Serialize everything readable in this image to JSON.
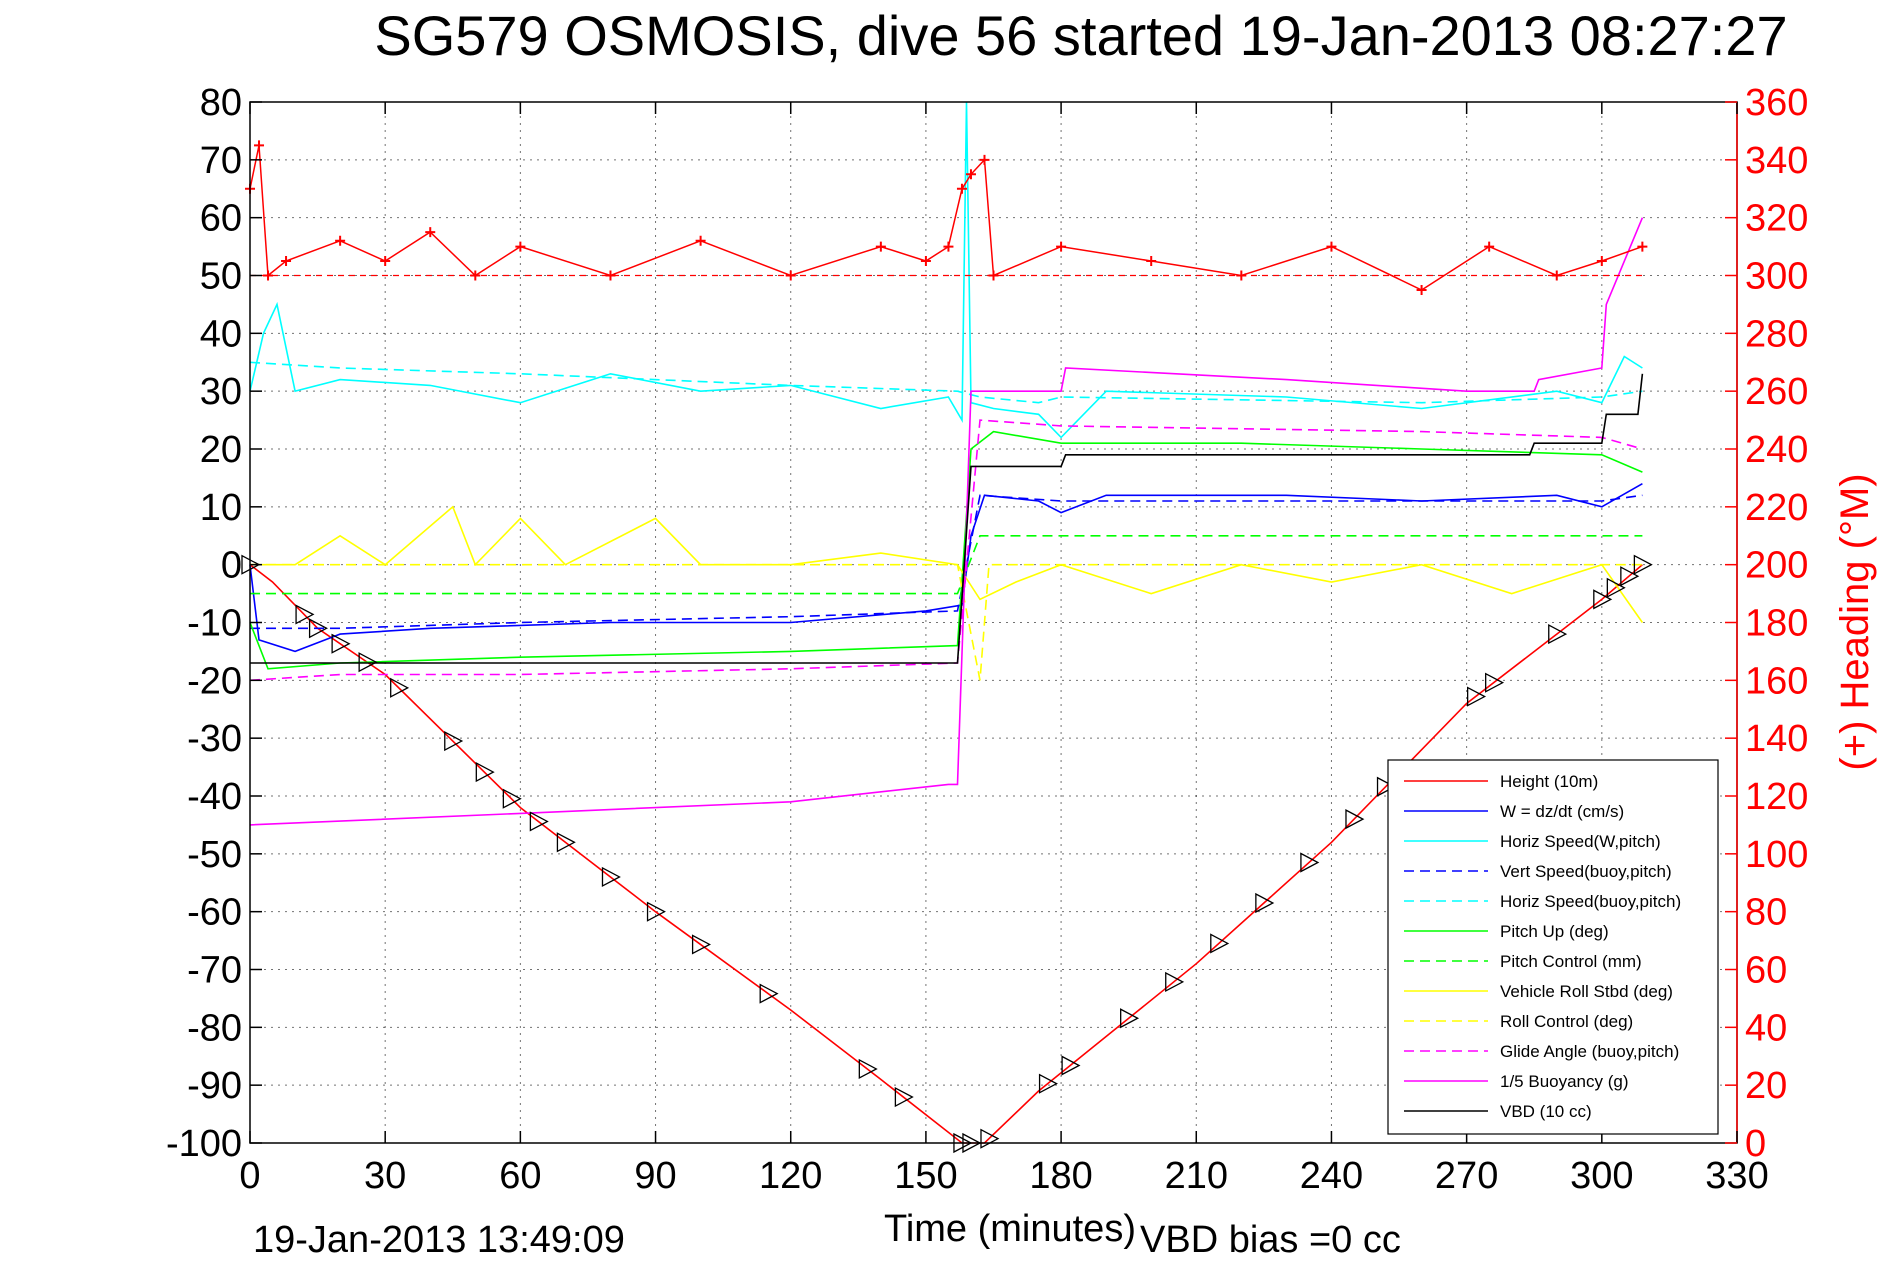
{
  "chart_data": {
    "type": "line",
    "title": "SG579 OSMOSIS, dive 56 started 19-Jan-2013 08:27:27",
    "xlabel": "Time (minutes)",
    "ylabel_right": "(+) Heading (°M)",
    "xlim": [
      0,
      330
    ],
    "ylim_left": [
      -100,
      80
    ],
    "ylim_right": [
      0,
      360
    ],
    "x_ticks": [
      "0",
      "30",
      "60",
      "90",
      "120",
      "150",
      "180",
      "210",
      "240",
      "270",
      "300",
      "330"
    ],
    "y_ticks_left": [
      "80",
      "70",
      "60",
      "50",
      "40",
      "30",
      "20",
      "10",
      "0",
      "-10",
      "-20",
      "-30",
      "-40",
      "-50",
      "-60",
      "-70",
      "-80",
      "-90",
      "-100"
    ],
    "y_ticks_right": [
      "360",
      "340",
      "320",
      "300",
      "280",
      "260",
      "240",
      "220",
      "200",
      "180",
      "160",
      "140",
      "120",
      "100",
      "80",
      "60",
      "40",
      "20",
      "0"
    ],
    "grid": true,
    "legend_position": "bottom-right",
    "footer_timestamp": "19-Jan-2013 13:49:09",
    "footer_note": "VBD bias =0 cc",
    "colors": {
      "heading": "#ff0000",
      "height": "#ff0000",
      "w": "#0000ff",
      "horiz": "#00ffff",
      "pitch": "#00ff00",
      "roll": "#ffff00",
      "buoy": "#ff00ff",
      "vbd": "#000000"
    },
    "series": [
      {
        "name": "Height (10m)",
        "color": "#ff0000",
        "style": "solid",
        "points": [
          [
            0,
            0
          ],
          [
            5,
            -3
          ],
          [
            15,
            -11
          ],
          [
            30,
            -19
          ],
          [
            60,
            -42
          ],
          [
            90,
            -60
          ],
          [
            120,
            -77
          ],
          [
            140,
            -89
          ],
          [
            158,
            -100
          ],
          [
            163,
            -100
          ],
          [
            175,
            -91
          ],
          [
            210,
            -69
          ],
          [
            240,
            -48
          ],
          [
            270,
            -24
          ],
          [
            290,
            -12
          ],
          [
            300,
            -6
          ],
          [
            309,
            0
          ]
        ]
      },
      {
        "name": "W = dz/dt (cm/s)",
        "color": "#0000ff",
        "style": "solid",
        "points": [
          [
            0,
            0
          ],
          [
            2,
            -13
          ],
          [
            10,
            -15
          ],
          [
            20,
            -12
          ],
          [
            40,
            -11
          ],
          [
            80,
            -10
          ],
          [
            120,
            -10
          ],
          [
            150,
            -8
          ],
          [
            158,
            -7
          ],
          [
            160,
            5
          ],
          [
            163,
            12
          ],
          [
            175,
            11
          ],
          [
            180,
            9
          ],
          [
            190,
            12
          ],
          [
            230,
            12
          ],
          [
            260,
            11
          ],
          [
            290,
            12
          ],
          [
            300,
            10
          ],
          [
            309,
            14
          ]
        ]
      },
      {
        "name": "Horiz Speed(W,pitch)",
        "color": "#00ffff",
        "style": "solid",
        "points": [
          [
            0,
            30
          ],
          [
            3,
            40
          ],
          [
            6,
            45
          ],
          [
            10,
            30
          ],
          [
            20,
            32
          ],
          [
            40,
            31
          ],
          [
            60,
            28
          ],
          [
            80,
            33
          ],
          [
            100,
            30
          ],
          [
            120,
            31
          ],
          [
            140,
            27
          ],
          [
            155,
            29
          ],
          [
            158,
            25
          ],
          [
            159,
            80
          ],
          [
            160,
            28
          ],
          [
            165,
            27
          ],
          [
            175,
            26
          ],
          [
            180,
            22
          ],
          [
            190,
            30
          ],
          [
            230,
            29
          ],
          [
            260,
            27
          ],
          [
            290,
            30
          ],
          [
            300,
            28
          ],
          [
            305,
            36
          ],
          [
            309,
            34
          ]
        ]
      },
      {
        "name": "Vert Speed(buoy,pitch)",
        "color": "#0000ff",
        "style": "dashed",
        "points": [
          [
            0,
            -11
          ],
          [
            20,
            -11
          ],
          [
            60,
            -10
          ],
          [
            120,
            -9
          ],
          [
            157,
            -8
          ],
          [
            162,
            12
          ],
          [
            180,
            11
          ],
          [
            260,
            11
          ],
          [
            300,
            11
          ],
          [
            309,
            12
          ]
        ]
      },
      {
        "name": "Horiz Speed(buoy,pitch)",
        "color": "#00ffff",
        "style": "dashed",
        "points": [
          [
            0,
            35
          ],
          [
            20,
            34
          ],
          [
            60,
            33
          ],
          [
            120,
            31
          ],
          [
            157,
            30
          ],
          [
            162,
            29
          ],
          [
            175,
            28
          ],
          [
            180,
            29
          ],
          [
            260,
            28
          ],
          [
            300,
            29
          ],
          [
            309,
            30
          ]
        ]
      },
      {
        "name": "Pitch Up (deg)",
        "color": "#00ff00",
        "style": "solid",
        "points": [
          [
            0,
            -10
          ],
          [
            4,
            -18
          ],
          [
            20,
            -17
          ],
          [
            60,
            -16
          ],
          [
            120,
            -15
          ],
          [
            157,
            -14
          ],
          [
            160,
            20
          ],
          [
            165,
            23
          ],
          [
            180,
            21
          ],
          [
            220,
            21
          ],
          [
            260,
            20
          ],
          [
            300,
            19
          ],
          [
            309,
            16
          ]
        ]
      },
      {
        "name": "Pitch Control (mm)",
        "color": "#00ff00",
        "style": "dashed",
        "points": [
          [
            0,
            -5
          ],
          [
            157,
            -5
          ],
          [
            162,
            5
          ],
          [
            309,
            5
          ]
        ]
      },
      {
        "name": "Vehicle Roll Stbd (deg)",
        "color": "#ffff00",
        "style": "solid",
        "points": [
          [
            0,
            0
          ],
          [
            10,
            0
          ],
          [
            20,
            5
          ],
          [
            30,
            0
          ],
          [
            45,
            10
          ],
          [
            50,
            0
          ],
          [
            60,
            8
          ],
          [
            70,
            0
          ],
          [
            90,
            8
          ],
          [
            100,
            0
          ],
          [
            120,
            0
          ],
          [
            140,
            2
          ],
          [
            157,
            0
          ],
          [
            162,
            -6
          ],
          [
            170,
            -3
          ],
          [
            180,
            0
          ],
          [
            200,
            -5
          ],
          [
            220,
            0
          ],
          [
            240,
            -3
          ],
          [
            260,
            0
          ],
          [
            280,
            -5
          ],
          [
            300,
            0
          ],
          [
            309,
            -10
          ]
        ]
      },
      {
        "name": "Roll Control (deg)",
        "color": "#ffff00",
        "style": "dashed",
        "points": [
          [
            0,
            0
          ],
          [
            157,
            0
          ],
          [
            162,
            -20
          ],
          [
            164,
            0
          ],
          [
            309,
            0
          ]
        ]
      },
      {
        "name": "Glide Angle (buoy,pitch)",
        "color": "#ff00ff",
        "style": "dashed",
        "points": [
          [
            0,
            -20
          ],
          [
            20,
            -19
          ],
          [
            60,
            -19
          ],
          [
            120,
            -18
          ],
          [
            157,
            -17
          ],
          [
            162,
            25
          ],
          [
            180,
            24
          ],
          [
            260,
            23
          ],
          [
            300,
            22
          ],
          [
            309,
            20
          ]
        ]
      },
      {
        "name": "1/5 Buoyancy (g)",
        "color": "#ff00ff",
        "style": "solid",
        "points": [
          [
            0,
            -45
          ],
          [
            60,
            -43
          ],
          [
            120,
            -41
          ],
          [
            155,
            -38
          ],
          [
            157,
            -38
          ],
          [
            160,
            30
          ],
          [
            180,
            30
          ],
          [
            181,
            34
          ],
          [
            230,
            32
          ],
          [
            270,
            30
          ],
          [
            285,
            30
          ],
          [
            286,
            32
          ],
          [
            300,
            34
          ],
          [
            301,
            45
          ],
          [
            309,
            60
          ]
        ]
      },
      {
        "name": "VBD (10 cc)",
        "color": "#000000",
        "style": "solid",
        "points": [
          [
            0,
            -17
          ],
          [
            30,
            -17
          ],
          [
            157,
            -17
          ],
          [
            160,
            17
          ],
          [
            180,
            17
          ],
          [
            181,
            19
          ],
          [
            284,
            19
          ],
          [
            285,
            21
          ],
          [
            300,
            21
          ],
          [
            301,
            26
          ],
          [
            308,
            26
          ],
          [
            309,
            33
          ]
        ]
      }
    ],
    "heading": {
      "name": "Heading (deg)",
      "color": "#ff0000",
      "axis": "right",
      "marker": "+",
      "mean": 300,
      "points": [
        [
          0,
          330
        ],
        [
          2,
          345
        ],
        [
          4,
          300
        ],
        [
          8,
          305
        ],
        [
          20,
          312
        ],
        [
          30,
          305
        ],
        [
          40,
          315
        ],
        [
          50,
          300
        ],
        [
          60,
          310
        ],
        [
          80,
          300
        ],
        [
          100,
          312
        ],
        [
          120,
          300
        ],
        [
          140,
          310
        ],
        [
          150,
          305
        ],
        [
          155,
          310
        ],
        [
          158,
          330
        ],
        [
          160,
          335
        ],
        [
          163,
          340
        ],
        [
          165,
          300
        ],
        [
          180,
          310
        ],
        [
          200,
          305
        ],
        [
          220,
          300
        ],
        [
          240,
          310
        ],
        [
          260,
          295
        ],
        [
          275,
          310
        ],
        [
          290,
          300
        ],
        [
          300,
          305
        ],
        [
          309,
          310
        ]
      ]
    },
    "markers": {
      "name": "Depth samples",
      "color": "#000000",
      "shape": "triangle",
      "x": [
        0,
        12,
        15,
        20,
        26,
        33,
        45,
        52,
        58,
        64,
        70,
        80,
        90,
        100,
        115,
        137,
        145,
        158,
        160,
        164,
        177,
        182,
        195,
        205,
        215,
        225,
        235,
        245,
        252,
        272,
        276,
        290,
        300,
        303,
        306,
        309
      ]
    }
  },
  "legend": [
    {
      "label": "Height (10m)",
      "color": "#ff0000",
      "style": "solid"
    },
    {
      "label": "W = dz/dt (cm/s)",
      "color": "#0000ff",
      "style": "solid"
    },
    {
      "label": "Horiz Speed(W,pitch)",
      "color": "#00ffff",
      "style": "solid"
    },
    {
      "label": "Vert Speed(buoy,pitch)",
      "color": "#0000ff",
      "style": "dashed"
    },
    {
      "label": "Horiz Speed(buoy,pitch)",
      "color": "#00ffff",
      "style": "dashed"
    },
    {
      "label": "Pitch Up (deg)",
      "color": "#00ff00",
      "style": "solid"
    },
    {
      "label": "Pitch Control (mm)",
      "color": "#00ff00",
      "style": "dashed"
    },
    {
      "label": "Vehicle Roll Stbd (deg)",
      "color": "#ffff00",
      "style": "solid"
    },
    {
      "label": "Roll Control (deg)",
      "color": "#ffff00",
      "style": "dashed"
    },
    {
      "label": "Glide Angle (buoy,pitch)",
      "color": "#ff00ff",
      "style": "dashed"
    },
    {
      "label": "1/5 Buoyancy (g)",
      "color": "#ff00ff",
      "style": "solid"
    },
    {
      "label": "VBD (10 cc)",
      "color": "#000000",
      "style": "solid"
    }
  ]
}
